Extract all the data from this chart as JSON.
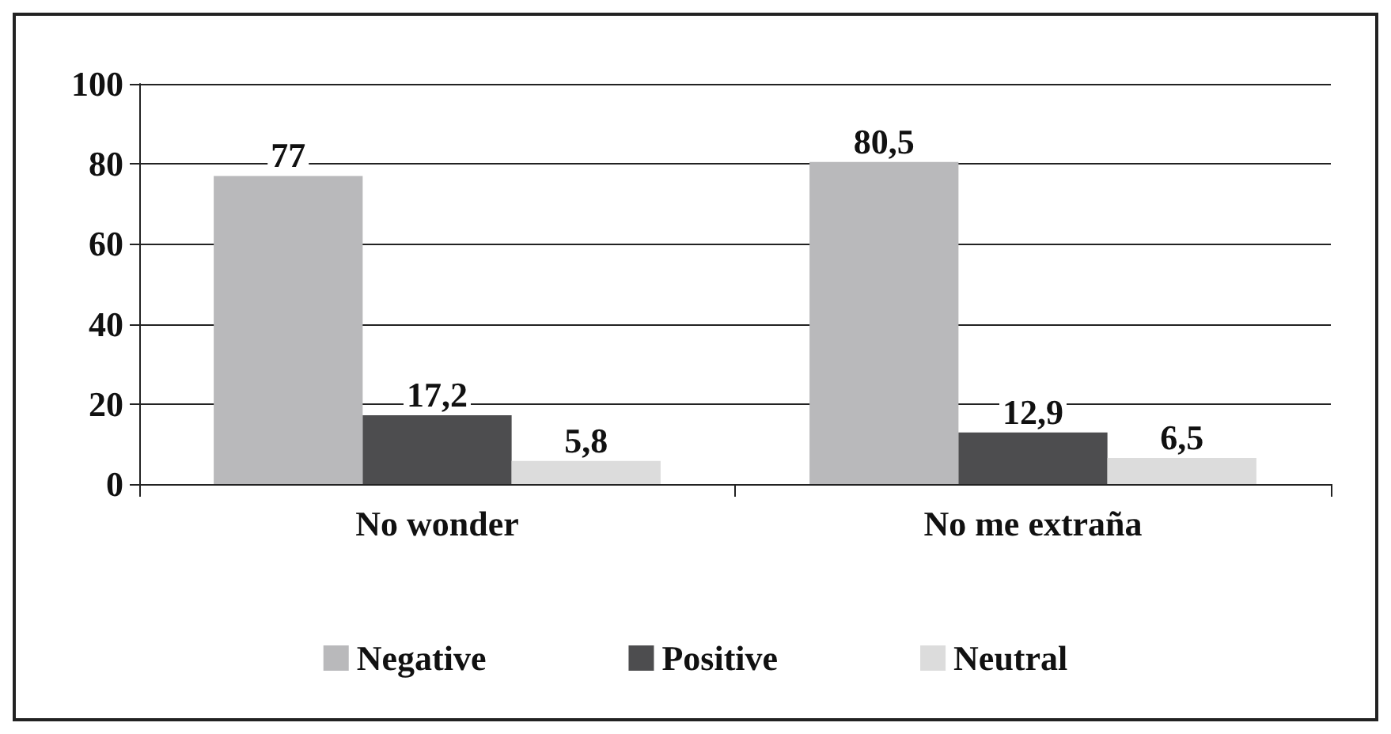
{
  "chart_data": {
    "type": "bar",
    "categories": [
      "No wonder",
      "No me extraña"
    ],
    "series": [
      {
        "name": "Negative",
        "color": "#b9b9bb",
        "values": [
          77,
          80.5
        ],
        "value_labels": [
          "77",
          "80,5"
        ]
      },
      {
        "name": "Positive",
        "color": "#4d4d4f",
        "values": [
          17.2,
          12.9
        ],
        "value_labels": [
          "17,2",
          "12,9"
        ]
      },
      {
        "name": "Neutral",
        "color": "#dcdcdc",
        "values": [
          5.8,
          6.5
        ],
        "value_labels": [
          "5,8",
          "6,5"
        ]
      }
    ],
    "ylim": [
      0,
      100
    ],
    "yticks": [
      0,
      20,
      40,
      60,
      80,
      100
    ],
    "grid": "y",
    "legend": "bottom"
  }
}
